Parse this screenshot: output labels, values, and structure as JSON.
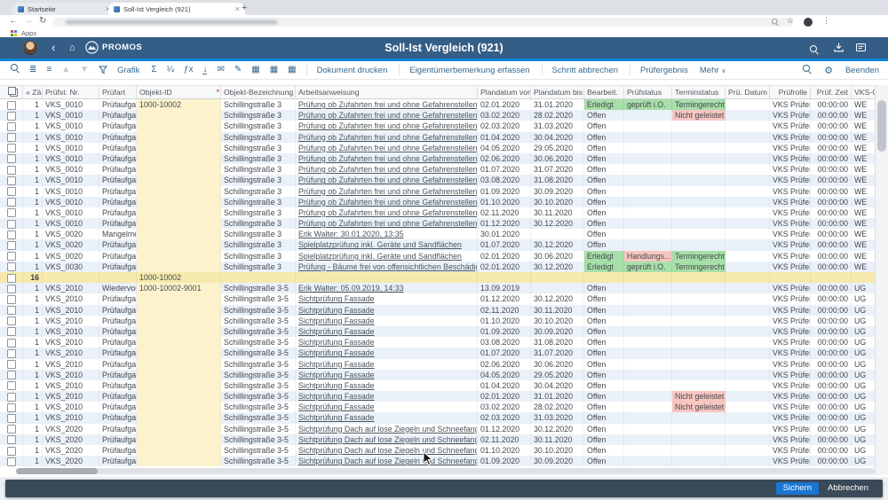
{
  "colors": {
    "shell": "#355e86",
    "accent": "#0e85dd",
    "toolbar_blue": "#35688e",
    "stripe": "#eaf1f8",
    "edit_yellow": "#fcf3cd",
    "summary_yellow": "#f6e9ac",
    "status_green": "#a7dfa9",
    "status_red": "#f7c6c0",
    "footer": "#3b4a58",
    "save_button": "#1a76d2"
  },
  "icons": {
    "sort_asc": "▲",
    "sort_desc": "▼",
    "sum": "Σ",
    "subtotal": "¼",
    "formula": "ƒx",
    "download": "↓",
    "mail": "✉",
    "signature": "✎",
    "grid": "▦",
    "gear": "⚙",
    "more_caret": "∨",
    "back_chevron": "‹",
    "home": "⌂",
    "list_detail": "≣",
    "list": "≡",
    "menu_dots": "⋮",
    "star": "☆",
    "back_arrow": "←",
    "forward_arrow": "→",
    "reload": "↻",
    "close": "×",
    "new_tab": "+",
    "bullet": "•"
  },
  "browser": {
    "tabs": [
      {
        "label": "Startseite"
      },
      {
        "label": "Soll-Ist Vergleich (921)"
      }
    ],
    "bookmarks_label": "Apps"
  },
  "shell": {
    "brand": "PROMOS",
    "title": "Soll-Ist Vergleich (921)"
  },
  "toolbar": {
    "grafik": "Grafik",
    "dokument_drucken": "Dokument drucken",
    "eigentuemer": "Eigentümerbemerkung erfassen",
    "schritt_abbrechen": "Schritt abbrechen",
    "pruefergebnis": "Prüfergebnis",
    "mehr": "Mehr",
    "beenden": "Beenden"
  },
  "table": {
    "columns": [
      {
        "key": "z",
        "label": "« Zäh..."
      },
      {
        "key": "nr",
        "label": "Prüfst. Nr."
      },
      {
        "key": "art",
        "label": "Prüfart"
      },
      {
        "key": "oid",
        "label": "Objekt-ID"
      },
      {
        "key": "obez",
        "label": "Objekt-Bezeichnung"
      },
      {
        "key": "arb",
        "label": "Arbeitsanweisung"
      },
      {
        "key": "von",
        "label": "Plandatum von"
      },
      {
        "key": "bis",
        "label": "Plandatum bis"
      },
      {
        "key": "bea",
        "label": "Bearbeit."
      },
      {
        "key": "pst",
        "label": "Prüfstatus"
      },
      {
        "key": "ter",
        "label": "Terminstatus"
      },
      {
        "key": "pdat",
        "label": "Prü. Datum"
      },
      {
        "key": "rolle",
        "label": "Prüfrolle"
      },
      {
        "key": "zeit",
        "label": "Prüf. Zeit"
      },
      {
        "key": "vks",
        "label": "VKS-Obj..."
      }
    ],
    "rows": [
      {
        "z": "1",
        "nr": "VKS_0010",
        "art": "Prüfaufgabe",
        "oid": "1000-10002",
        "obez": "Schillingstraße 3",
        "arb": "Prüfung ob Zufahrten frei und ohne Gefahrenstellen",
        "von": "02.01.2020",
        "bis": "31.01.2020",
        "bea": "Erledigt",
        "beaC": "g",
        "pst": "geprüft i.O.",
        "pstC": "g",
        "ter": "Termingerecht",
        "terC": "g",
        "pdat": "",
        "rolle": "VKS Prüfer",
        "zeit": "00:00:00",
        "vks": "WE"
      },
      {
        "z": "1",
        "nr": "VKS_0010",
        "art": "Prüfaufgabe",
        "oid": "",
        "obez": "Schillingstraße 3",
        "arb": "Prüfung ob Zufahrten frei und ohne Gefahrenstellen",
        "von": "03.02.2020",
        "bis": "28.02.2020",
        "bea": "Offen",
        "pst": "",
        "ter": "Nicht geleistet",
        "terC": "r",
        "pdat": "",
        "rolle": "VKS Prüfer",
        "zeit": "00:00:00",
        "vks": "WE"
      },
      {
        "z": "1",
        "nr": "VKS_0010",
        "art": "Prüfaufgabe",
        "oid": "",
        "obez": "Schillingstraße 3",
        "arb": "Prüfung ob Zufahrten frei und ohne Gefahrenstellen",
        "von": "02.03.2020",
        "bis": "31.03.2020",
        "bea": "Offen",
        "pst": "",
        "ter": "",
        "pdat": "",
        "rolle": "VKS Prüfer",
        "zeit": "00:00:00",
        "vks": "WE"
      },
      {
        "z": "1",
        "nr": "VKS_0010",
        "art": "Prüfaufgabe",
        "oid": "",
        "obez": "Schillingstraße 3",
        "arb": "Prüfung ob Zufahrten frei und ohne Gefahrenstellen",
        "von": "01.04.2020",
        "bis": "30.04.2020",
        "bea": "Offen",
        "pst": "",
        "ter": "",
        "pdat": "",
        "rolle": "VKS Prüfer",
        "zeit": "00:00:00",
        "vks": "WE"
      },
      {
        "z": "1",
        "nr": "VKS_0010",
        "art": "Prüfaufgabe",
        "oid": "",
        "obez": "Schillingstraße 3",
        "arb": "Prüfung ob Zufahrten frei und ohne Gefahrenstellen",
        "von": "04.05.2020",
        "bis": "29.05.2020",
        "bea": "Offen",
        "pst": "",
        "ter": "",
        "pdat": "",
        "rolle": "VKS Prüfer",
        "zeit": "00:00:00",
        "vks": "WE"
      },
      {
        "z": "1",
        "nr": "VKS_0010",
        "art": "Prüfaufgabe",
        "oid": "",
        "obez": "Schillingstraße 3",
        "arb": "Prüfung ob Zufahrten frei und ohne Gefahrenstellen",
        "von": "02.06.2020",
        "bis": "30.06.2020",
        "bea": "Offen",
        "pst": "",
        "ter": "",
        "pdat": "",
        "rolle": "VKS Prüfer",
        "zeit": "00:00:00",
        "vks": "WE"
      },
      {
        "z": "1",
        "nr": "VKS_0010",
        "art": "Prüfaufgabe",
        "oid": "",
        "obez": "Schillingstraße 3",
        "arb": "Prüfung ob Zufahrten frei und ohne Gefahrenstellen",
        "von": "01.07.2020",
        "bis": "31.07.2020",
        "bea": "Offen",
        "pst": "",
        "ter": "",
        "pdat": "",
        "rolle": "VKS Prüfer",
        "zeit": "00:00:00",
        "vks": "WE"
      },
      {
        "z": "1",
        "nr": "VKS_0010",
        "art": "Prüfaufgabe",
        "oid": "",
        "obez": "Schillingstraße 3",
        "arb": "Prüfung ob Zufahrten frei und ohne Gefahrenstellen",
        "von": "03.08.2020",
        "bis": "31.08.2020",
        "bea": "Offen",
        "pst": "",
        "ter": "",
        "pdat": "",
        "rolle": "VKS Prüfer",
        "zeit": "00:00:00",
        "vks": "WE"
      },
      {
        "z": "1",
        "nr": "VKS_0010",
        "art": "Prüfaufgabe",
        "oid": "",
        "obez": "Schillingstraße 3",
        "arb": "Prüfung ob Zufahrten frei und ohne Gefahrenstellen",
        "von": "01.09.2020",
        "bis": "30.09.2020",
        "bea": "Offen",
        "pst": "",
        "ter": "",
        "pdat": "",
        "rolle": "VKS Prüfer",
        "zeit": "00:00:00",
        "vks": "WE"
      },
      {
        "z": "1",
        "nr": "VKS_0010",
        "art": "Prüfaufgabe",
        "oid": "",
        "obez": "Schillingstraße 3",
        "arb": "Prüfung ob Zufahrten frei und ohne Gefahrenstellen",
        "von": "01.10.2020",
        "bis": "30.10.2020",
        "bea": "Offen",
        "pst": "",
        "ter": "",
        "pdat": "",
        "rolle": "VKS Prüfer",
        "zeit": "00:00:00",
        "vks": "WE"
      },
      {
        "z": "1",
        "nr": "VKS_0010",
        "art": "Prüfaufgabe",
        "oid": "",
        "obez": "Schillingstraße 3",
        "arb": "Prüfung ob Zufahrten frei und ohne Gefahrenstellen",
        "von": "02.11.2020",
        "bis": "30.11.2020",
        "bea": "Offen",
        "pst": "",
        "ter": "",
        "pdat": "",
        "rolle": "VKS Prüfer",
        "zeit": "00:00:00",
        "vks": "WE"
      },
      {
        "z": "1",
        "nr": "VKS_0010",
        "art": "Prüfaufgabe",
        "oid": "",
        "obez": "Schillingstraße 3",
        "arb": "Prüfung ob Zufahrten frei und ohne Gefahrenstellen",
        "von": "01.12.2020",
        "bis": "30.12.2020",
        "bea": "Offen",
        "pst": "",
        "ter": "",
        "pdat": "",
        "rolle": "VKS Prüfer",
        "zeit": "00:00:00",
        "vks": "WE"
      },
      {
        "z": "1",
        "nr": "VKS_0020",
        "art": "Mangelme...",
        "oid": "",
        "obez": "Schillingstraße 3",
        "arb": "Erik Walter: 30.01.2020, 13:35",
        "von": "30.01.2020",
        "bis": "",
        "bea": "Offen",
        "pst": "",
        "ter": "",
        "pdat": "",
        "rolle": "VKS Prüfer",
        "zeit": "00:00:00",
        "vks": "WE"
      },
      {
        "z": "1",
        "nr": "VKS_0020",
        "art": "Prüfaufgabe",
        "oid": "",
        "obez": "Schillingstraße 3",
        "arb": "Spielplatzprüfung inkl. Geräte und Sandflächen",
        "von": "01.07.2020",
        "bis": "30.12.2020",
        "bea": "Offen",
        "pst": "",
        "ter": "",
        "pdat": "",
        "rolle": "VKS Prüfer",
        "zeit": "00:00:00",
        "vks": "WE"
      },
      {
        "z": "1",
        "nr": "VKS_0020",
        "art": "Prüfaufgabe",
        "oid": "",
        "obez": "Schillingstraße 3",
        "arb": "Spielplatzprüfung inkl. Geräte und Sandflächen",
        "von": "02.01.2020",
        "bis": "30.06.2020",
        "bea": "Erledigt",
        "beaC": "g",
        "pst": "Handlungs...",
        "pstC": "r",
        "ter": "Termingerecht",
        "terC": "g",
        "pdat": "",
        "rolle": "VKS Prüfer",
        "zeit": "00:00:00",
        "vks": "WE"
      },
      {
        "z": "1",
        "nr": "VKS_0030",
        "art": "Prüfaufgabe",
        "oid": "",
        "obez": "Schillingstraße 3",
        "arb": "Prüfung - Bäume frei von offensichtlichen Beschädigungen, T...",
        "von": "02.01.2020",
        "bis": "30.12.2020",
        "bea": "Erledigt",
        "beaC": "g",
        "pst": "geprüft i.O.",
        "pstC": "g",
        "ter": "Termingerecht",
        "terC": "g",
        "pdat": "",
        "rolle": "VKS Prüfer",
        "zeit": "00:00:00",
        "vks": "WE"
      },
      {
        "type": "summary",
        "z": "16",
        "nr": "",
        "art": "",
        "oid": "1000-10002",
        "obez": "",
        "arb": "",
        "von": "",
        "bis": "",
        "bea": "",
        "pst": "",
        "ter": "",
        "pdat": "",
        "rolle": "",
        "zeit": "",
        "vks": ""
      },
      {
        "z": "1",
        "nr": "VKS_2010",
        "art": "Wiedervorl...",
        "oid": "1000-10002-9001",
        "obez": "Schillingstraße 3-5",
        "arb": "Erik Walter: 05.09.2019, 14:33",
        "von": "13.09.2019",
        "bis": "",
        "bea": "Offen",
        "pst": "",
        "ter": "",
        "pdat": "",
        "rolle": "VKS Prüfer",
        "zeit": "00:00:00",
        "vks": "UG"
      },
      {
        "z": "1",
        "nr": "VKS_2010",
        "art": "Prüfaufgabe",
        "oid": "",
        "obez": "Schillingstraße 3-5",
        "arb": "Sichtprüfung Fassade",
        "von": "01.12.2020",
        "bis": "30.12.2020",
        "bea": "Offen",
        "pst": "",
        "ter": "",
        "pdat": "",
        "rolle": "VKS Prüfer",
        "zeit": "00:00:00",
        "vks": "UG"
      },
      {
        "z": "1",
        "nr": "VKS_2010",
        "art": "Prüfaufgabe",
        "oid": "",
        "obez": "Schillingstraße 3-5",
        "arb": "Sichtprüfung Fassade",
        "von": "02.11.2020",
        "bis": "30.11.2020",
        "bea": "Offen",
        "pst": "",
        "ter": "",
        "pdat": "",
        "rolle": "VKS Prüfer",
        "zeit": "00:00:00",
        "vks": "UG"
      },
      {
        "z": "1",
        "nr": "VKS_2010",
        "art": "Prüfaufgabe",
        "oid": "",
        "obez": "Schillingstraße 3-5",
        "arb": "Sichtprüfung Fassade",
        "von": "01.10.2020",
        "bis": "30.10.2020",
        "bea": "Offen",
        "pst": "",
        "ter": "",
        "pdat": "",
        "rolle": "VKS Prüfer",
        "zeit": "00:00:00",
        "vks": "UG"
      },
      {
        "z": "1",
        "nr": "VKS_2010",
        "art": "Prüfaufgabe",
        "oid": "",
        "obez": "Schillingstraße 3-5",
        "arb": "Sichtprüfung Fassade",
        "von": "01.09.2020",
        "bis": "30.09.2020",
        "bea": "Offen",
        "pst": "",
        "ter": "",
        "pdat": "",
        "rolle": "VKS Prüfer",
        "zeit": "00:00:00",
        "vks": "UG"
      },
      {
        "z": "1",
        "nr": "VKS_2010",
        "art": "Prüfaufgabe",
        "oid": "",
        "obez": "Schillingstraße 3-5",
        "arb": "Sichtprüfung Fassade",
        "von": "03.08.2020",
        "bis": "31.08.2020",
        "bea": "Offen",
        "pst": "",
        "ter": "",
        "pdat": "",
        "rolle": "VKS Prüfer",
        "zeit": "00:00:00",
        "vks": "UG"
      },
      {
        "z": "1",
        "nr": "VKS_2010",
        "art": "Prüfaufgabe",
        "oid": "",
        "obez": "Schillingstraße 3-5",
        "arb": "Sichtprüfung Fassade",
        "von": "01.07.2020",
        "bis": "31.07.2020",
        "bea": "Offen",
        "pst": "",
        "ter": "",
        "pdat": "",
        "rolle": "VKS Prüfer",
        "zeit": "00:00:00",
        "vks": "UG"
      },
      {
        "z": "1",
        "nr": "VKS_2010",
        "art": "Prüfaufgabe",
        "oid": "",
        "obez": "Schillingstraße 3-5",
        "arb": "Sichtprüfung Fassade",
        "von": "02.06.2020",
        "bis": "30.06.2020",
        "bea": "Offen",
        "pst": "",
        "ter": "",
        "pdat": "",
        "rolle": "VKS Prüfer",
        "zeit": "00:00:00",
        "vks": "UG"
      },
      {
        "z": "1",
        "nr": "VKS_2010",
        "art": "Prüfaufgabe",
        "oid": "",
        "obez": "Schillingstraße 3-5",
        "arb": "Sichtprüfung Fassade",
        "von": "04.05.2020",
        "bis": "29.05.2020",
        "bea": "Offen",
        "pst": "",
        "ter": "",
        "pdat": "",
        "rolle": "VKS Prüfer",
        "zeit": "00:00:00",
        "vks": "UG"
      },
      {
        "z": "1",
        "nr": "VKS_2010",
        "art": "Prüfaufgabe",
        "oid": "",
        "obez": "Schillingstraße 3-5",
        "arb": "Sichtprüfung Fassade",
        "von": "01.04.2020",
        "bis": "30.04.2020",
        "bea": "Offen",
        "pst": "",
        "ter": "",
        "pdat": "",
        "rolle": "VKS Prüfer",
        "zeit": "00:00:00",
        "vks": "UG"
      },
      {
        "z": "1",
        "nr": "VKS_2010",
        "art": "Prüfaufgabe",
        "oid": "",
        "obez": "Schillingstraße 3-5",
        "arb": "Sichtprüfung Fassade",
        "von": "02.01.2020",
        "bis": "31.01.2020",
        "bea": "Offen",
        "pst": "",
        "ter": "Nicht geleistet",
        "terC": "r",
        "pdat": "",
        "rolle": "VKS Prüfer",
        "zeit": "00:00:00",
        "vks": "UG"
      },
      {
        "z": "1",
        "nr": "VKS_2010",
        "art": "Prüfaufgabe",
        "oid": "",
        "obez": "Schillingstraße 3-5",
        "arb": "Sichtprüfung Fassade",
        "von": "03.02.2020",
        "bis": "28.02.2020",
        "bea": "Offen",
        "pst": "",
        "ter": "Nicht geleistet",
        "terC": "r",
        "pdat": "",
        "rolle": "VKS Prüfer",
        "zeit": "00:00:00",
        "vks": "UG"
      },
      {
        "z": "1",
        "nr": "VKS_2010",
        "art": "Prüfaufgabe",
        "oid": "",
        "obez": "Schillingstraße 3-5",
        "arb": "Sichtprüfung Fassade",
        "von": "02.03.2020",
        "bis": "31.03.2020",
        "bea": "Offen",
        "pst": "",
        "ter": "",
        "pdat": "",
        "rolle": "VKS Prüfer",
        "zeit": "00:00:00",
        "vks": "UG"
      },
      {
        "z": "1",
        "nr": "VKS_2020",
        "art": "Prüfaufgabe",
        "oid": "",
        "obez": "Schillingstraße 3-5",
        "arb": "Sichtprüfung Dach auf lose Ziegeln und Schneefanggitter",
        "von": "01.12.2020",
        "bis": "30.12.2020",
        "bea": "Offen",
        "pst": "",
        "ter": "",
        "pdat": "",
        "rolle": "VKS Prüfer",
        "zeit": "00:00:00",
        "vks": "UG"
      },
      {
        "z": "1",
        "nr": "VKS_2020",
        "art": "Prüfaufgabe",
        "oid": "",
        "obez": "Schillingstraße 3-5",
        "arb": "Sichtprüfung Dach auf lose Ziegeln und Schneefanggitter",
        "von": "02.11.2020",
        "bis": "30.11.2020",
        "bea": "Offen",
        "pst": "",
        "ter": "",
        "pdat": "",
        "rolle": "VKS Prüfer",
        "zeit": "00:00:00",
        "vks": "UG"
      },
      {
        "z": "1",
        "nr": "VKS_2020",
        "art": "Prüfaufgabe",
        "oid": "",
        "obez": "Schillingstraße 3-5",
        "arb": "Sichtprüfung Dach auf lose Ziegeln und Schneefanggitter",
        "von": "01.10.2020",
        "bis": "30.10.2020",
        "bea": "Offen",
        "pst": "",
        "ter": "",
        "pdat": "",
        "rolle": "VKS Prüfer",
        "zeit": "00:00:00",
        "vks": "UG"
      },
      {
        "z": "1",
        "nr": "VKS_2020",
        "art": "Prüfaufgabe",
        "oid": "",
        "obez": "Schillingstraße 3-5",
        "arb": "Sichtprüfung Dach auf lose Ziegeln und Schneefanggitter",
        "von": "01.09.2020",
        "bis": "30.09.2020",
        "bea": "Offen",
        "pst": "",
        "ter": "",
        "pdat": "",
        "rolle": "VKS Prüfer",
        "zeit": "00:00:00",
        "vks": "UG"
      }
    ]
  },
  "footer": {
    "save_label": "Sichern",
    "cancel_label": "Abbrechen"
  }
}
